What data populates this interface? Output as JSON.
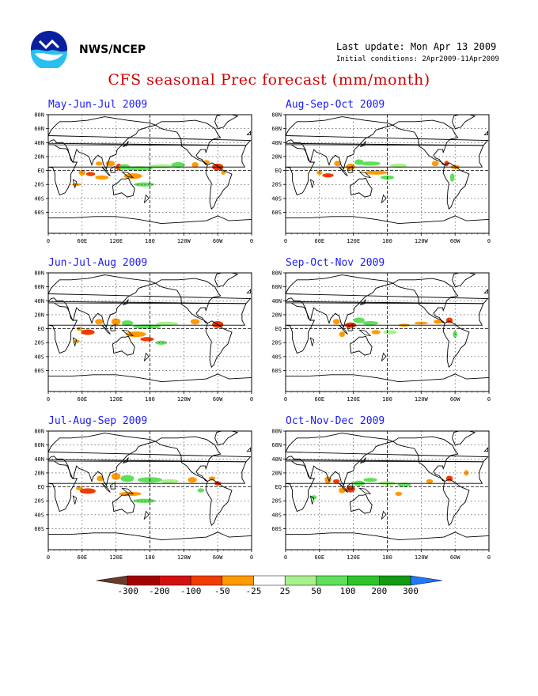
{
  "header": {
    "org": "NWS/NCEP",
    "last_update": "Last update: Mon Apr 13 2009",
    "initial_conditions": "Initial conditions: 2Apr2009-11Apr2009",
    "title": "CFS seasonal Prec forecast (mm/month)"
  },
  "axes": {
    "lat_labels": [
      "80N",
      "60N",
      "40N",
      "20N",
      "EQ",
      "20S",
      "40S",
      "60S"
    ],
    "lon_labels": [
      "0",
      "60E",
      "120E",
      "180",
      "120W",
      "60W",
      "0"
    ]
  },
  "panels": [
    {
      "title": "May-Jun-Jul 2009"
    },
    {
      "title": "Aug-Sep-Oct 2009"
    },
    {
      "title": "Jun-Jul-Aug 2009"
    },
    {
      "title": "Sep-Oct-Nov 2009"
    },
    {
      "title": "Jul-Aug-Sep 2009"
    },
    {
      "title": "Oct-Nov-Dec 2009"
    }
  ],
  "colorbar": {
    "labels": [
      "-300",
      "-200",
      "-100",
      "-50",
      "-25",
      "25",
      "50",
      "100",
      "200",
      "300"
    ],
    "colors": [
      "#6b3a2a",
      "#a50000",
      "#d31010",
      "#f03c00",
      "#ff9a00",
      "#ffffff",
      "#a8f08c",
      "#5ee05a",
      "#2cc42a",
      "#129a12",
      "#1e78ff"
    ]
  },
  "colors": {
    "title": "#cc0000",
    "panel_title": "#1a1aff",
    "dry": "#ff9a00",
    "dry_strong": "#f03c00",
    "wet": "#5ee05a",
    "wet_light": "#a8f08c"
  }
}
